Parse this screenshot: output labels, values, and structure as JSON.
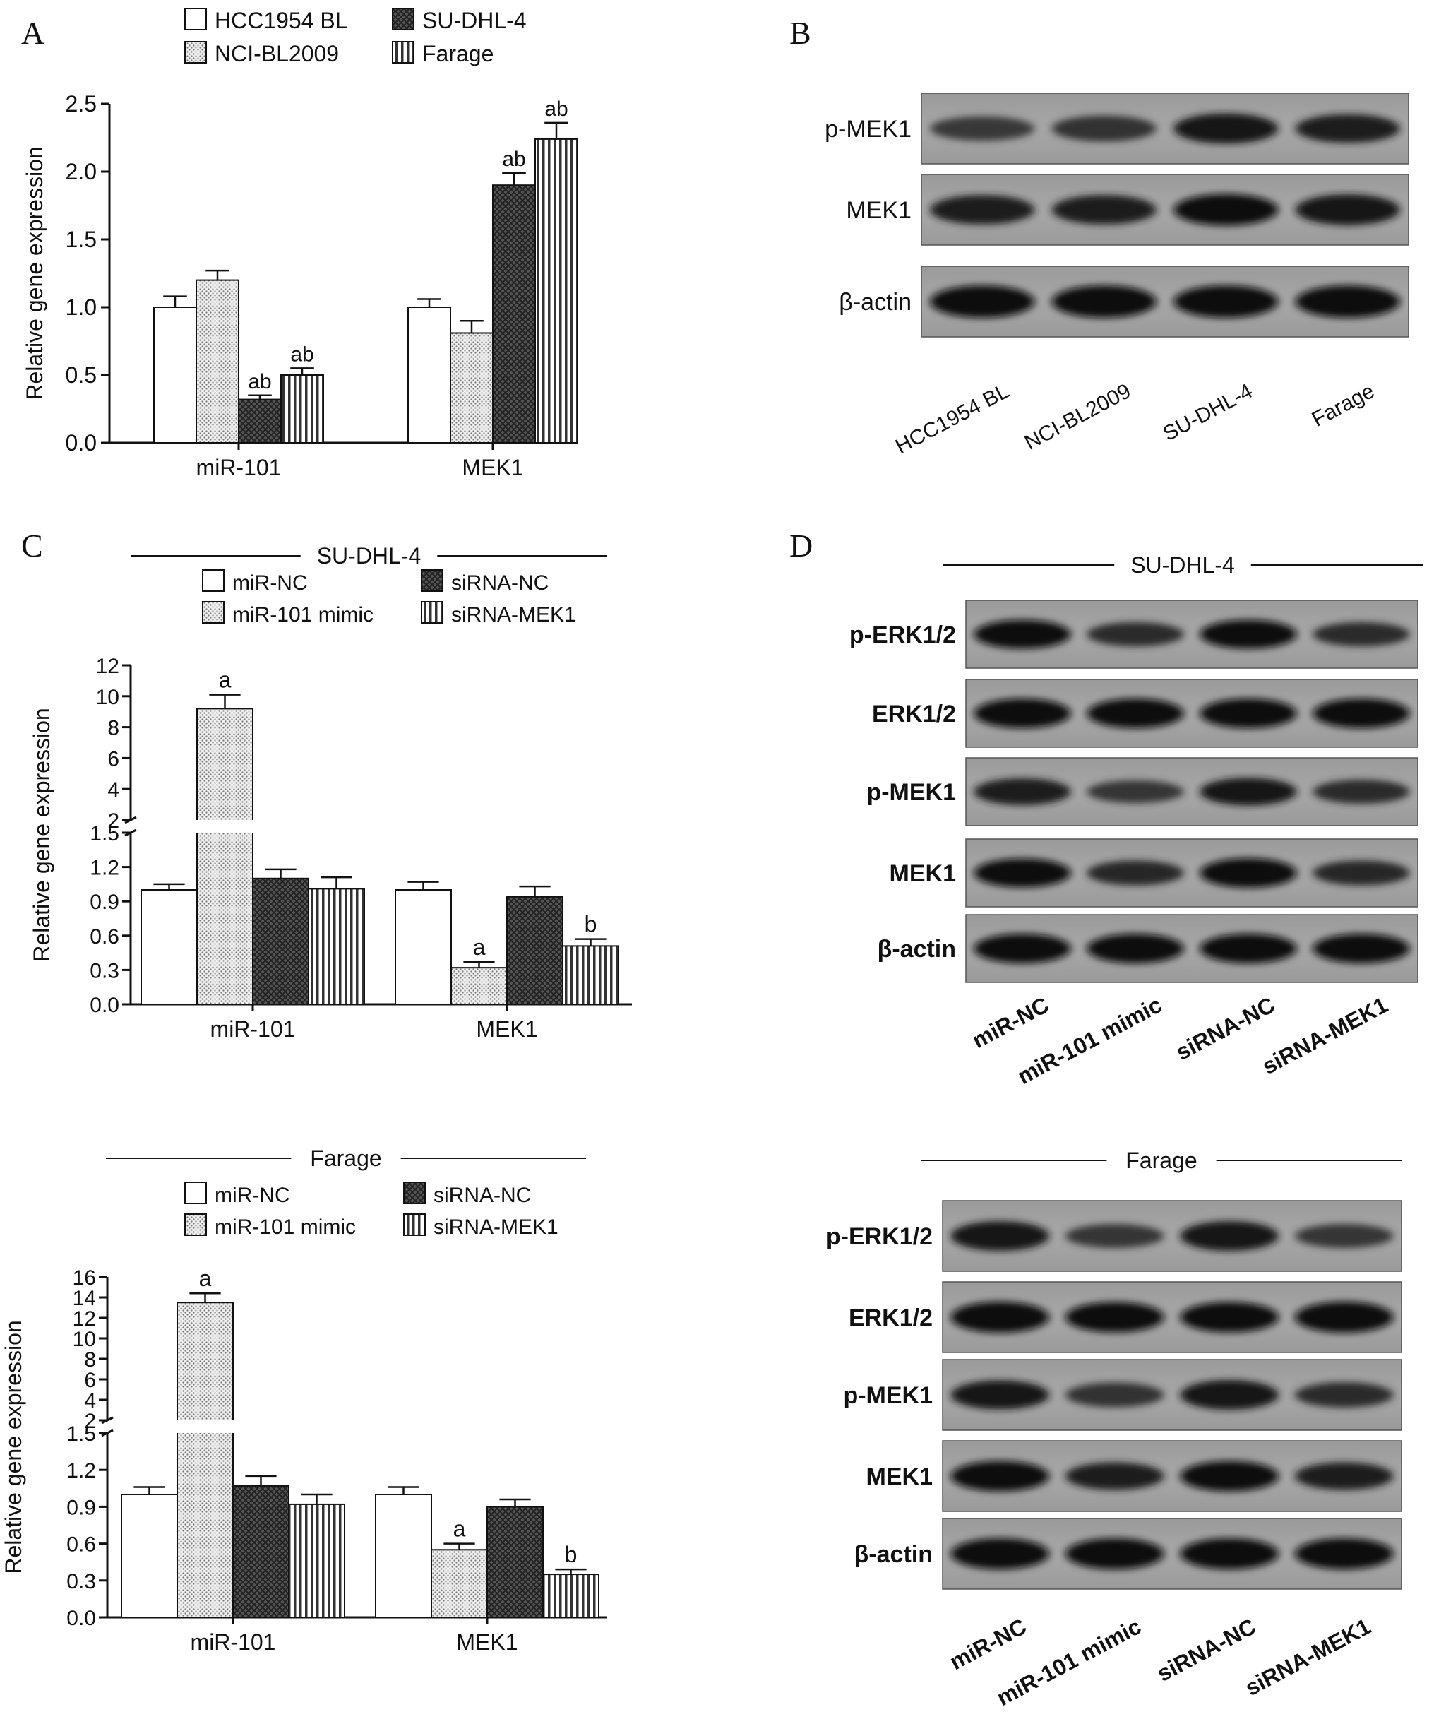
{
  "panels": {
    "A": {
      "letter": "A",
      "chart_data": {
        "type": "bar",
        "categories": [
          "miR-101",
          "MEK1"
        ],
        "series": [
          {
            "name": "HCC1954 BL",
            "values": [
              1.0,
              1.0
            ],
            "errors": [
              0.08,
              0.06
            ],
            "pattern": "white"
          },
          {
            "name": "NCI-BL2009",
            "values": [
              1.2,
              0.81
            ],
            "errors": [
              0.07,
              0.09
            ],
            "pattern": "dots"
          },
          {
            "name": "SU-DHL-4",
            "values": [
              0.32,
              1.9
            ],
            "errors": [
              0.03,
              0.09
            ],
            "pattern": "dark"
          },
          {
            "name": "Farage",
            "values": [
              0.5,
              2.24
            ],
            "errors": [
              0.05,
              0.12
            ],
            "pattern": "stripes"
          }
        ],
        "annotations": [
          [
            "",
            "",
            "ab",
            "ab"
          ],
          [
            "",
            "",
            "ab",
            "ab"
          ]
        ],
        "ylabel": "Relative gene expression",
        "ylim": [
          0,
          2.5
        ],
        "yticks": [
          "0.0",
          "0.5",
          "1.0",
          "1.5",
          "2.0",
          "2.5"
        ]
      }
    },
    "B": {
      "letter": "B",
      "rows": [
        "p-MEK1",
        "MEK1",
        "β-actin"
      ],
      "lanes": [
        "HCC1954 BL",
        "NCI-BL2009",
        "SU-DHL-4",
        "Farage"
      ],
      "band_intensity": [
        [
          0.45,
          0.55,
          0.85,
          0.75
        ],
        [
          0.8,
          0.8,
          0.95,
          0.9
        ],
        [
          1.0,
          1.0,
          1.0,
          1.0
        ]
      ]
    },
    "C_top": {
      "letter": "C",
      "header": "SU-DHL-4",
      "chart_data": {
        "type": "bar",
        "categories": [
          "miR-101",
          "MEK1"
        ],
        "series": [
          {
            "name": "miR-NC",
            "values": [
              1.0,
              1.0
            ],
            "errors": [
              0.05,
              0.07
            ],
            "pattern": "white"
          },
          {
            "name": "miR-101 mimic",
            "values": [
              9.2,
              0.32
            ],
            "errors": [
              0.9,
              0.05
            ],
            "pattern": "dots"
          },
          {
            "name": "siRNA-NC",
            "values": [
              1.1,
              0.94
            ],
            "errors": [
              0.08,
              0.09
            ],
            "pattern": "dark"
          },
          {
            "name": "siRNA-MEK1",
            "values": [
              1.01,
              0.51
            ],
            "errors": [
              0.1,
              0.06
            ],
            "pattern": "stripes"
          }
        ],
        "annotations": [
          [
            "",
            "a",
            "",
            ""
          ],
          [
            "",
            "a",
            "",
            "b"
          ]
        ],
        "ylabel": "Relative gene expression",
        "broken_axis": true,
        "lower_ylim": [
          0,
          1.5
        ],
        "upper_ylim": [
          2,
          12
        ],
        "lower_yticks": [
          "0.0",
          "0.3",
          "0.6",
          "0.9",
          "1.2",
          "1.5"
        ],
        "upper_yticks": [
          "2",
          "4",
          "6",
          "8",
          "10",
          "12"
        ]
      }
    },
    "C_bottom": {
      "header": "Farage",
      "chart_data": {
        "type": "bar",
        "categories": [
          "miR-101",
          "MEK1"
        ],
        "series": [
          {
            "name": "miR-NC",
            "values": [
              1.0,
              1.0
            ],
            "errors": [
              0.06,
              0.06
            ],
            "pattern": "white"
          },
          {
            "name": "miR-101 mimic",
            "values": [
              13.5,
              0.55
            ],
            "errors": [
              0.9,
              0.05
            ],
            "pattern": "dots"
          },
          {
            "name": "siRNA-NC",
            "values": [
              1.07,
              0.9
            ],
            "errors": [
              0.08,
              0.06
            ],
            "pattern": "dark"
          },
          {
            "name": "siRNA-MEK1",
            "values": [
              0.92,
              0.35
            ],
            "errors": [
              0.08,
              0.04
            ],
            "pattern": "stripes"
          }
        ],
        "annotations": [
          [
            "",
            "a",
            "",
            ""
          ],
          [
            "",
            "a",
            "",
            "b"
          ]
        ],
        "ylabel": "Relative gene expression",
        "broken_axis": true,
        "lower_ylim": [
          0,
          1.5
        ],
        "upper_ylim": [
          2,
          16
        ],
        "lower_yticks": [
          "0.0",
          "0.3",
          "0.6",
          "0.9",
          "1.2",
          "1.5"
        ],
        "upper_yticks": [
          "2",
          "4",
          "6",
          "8",
          "10",
          "12",
          "14",
          "16"
        ]
      }
    },
    "D_top": {
      "letter": "D",
      "header": "SU-DHL-4",
      "rows": [
        "p-ERK1/2",
        "ERK1/2",
        "p-MEK1",
        "MEK1",
        "β-actin"
      ],
      "lanes": [
        "miR-NC",
        "miR-101 mimic",
        "siRNA-NC",
        "siRNA-MEK1"
      ],
      "band_intensity": [
        [
          0.95,
          0.6,
          0.95,
          0.6
        ],
        [
          1.0,
          1.0,
          1.0,
          1.0
        ],
        [
          0.8,
          0.5,
          0.85,
          0.6
        ],
        [
          0.95,
          0.65,
          1.0,
          0.65
        ],
        [
          1.0,
          1.0,
          1.0,
          1.0
        ]
      ]
    },
    "D_bottom": {
      "header": "Farage",
      "rows": [
        "p-ERK1/2",
        "ERK1/2",
        "p-MEK1",
        "MEK1",
        "β-actin"
      ],
      "lanes": [
        "miR-NC",
        "miR-101 mimic",
        "siRNA-NC",
        "siRNA-MEK1"
      ],
      "band_intensity": [
        [
          0.9,
          0.5,
          0.9,
          0.5
        ],
        [
          1.0,
          0.95,
          0.95,
          1.0
        ],
        [
          0.85,
          0.55,
          0.9,
          0.6
        ],
        [
          0.95,
          0.75,
          0.95,
          0.75
        ],
        [
          1.0,
          1.0,
          1.0,
          1.0
        ]
      ]
    }
  }
}
